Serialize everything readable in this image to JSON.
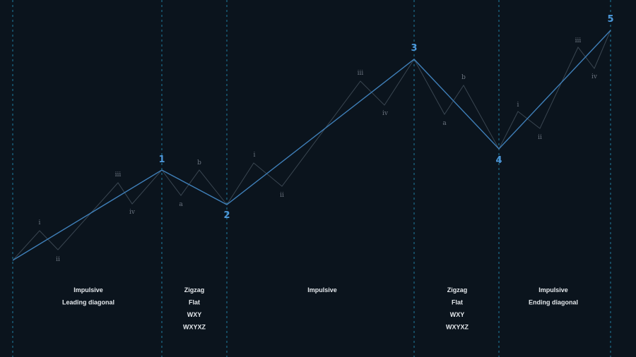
{
  "colors": {
    "background": "#0b141d",
    "divider": "#1f7ea1",
    "main_wave": "#3f7fb8",
    "sub_wave": "#3a4651",
    "main_label": "#4c97d9",
    "sub_label": "#6c7580",
    "caption": "#e4e8ec"
  },
  "main_wave": {
    "labels": [
      "1",
      "2",
      "3",
      "4",
      "5"
    ]
  },
  "sub_waves": [
    {
      "labels": [
        "i",
        "ii",
        "iii",
        "iv"
      ]
    },
    {
      "labels": [
        "a",
        "b"
      ]
    },
    {
      "labels": [
        "i",
        "ii",
        "iii",
        "iv"
      ]
    },
    {
      "labels": [
        "a",
        "b"
      ]
    },
    {
      "labels": [
        "i",
        "ii",
        "iii",
        "iv"
      ]
    }
  ],
  "captions": [
    [
      "Impulsive",
      "Leading diagonal"
    ],
    [
      "Zigzag",
      "Flat",
      "WXY",
      "WXYXZ"
    ],
    [
      "Impulsive"
    ],
    [
      "Zigzag",
      "Flat",
      "WXY",
      "WXYXZ"
    ],
    [
      "Impulsive",
      "Ending diagonal"
    ]
  ]
}
